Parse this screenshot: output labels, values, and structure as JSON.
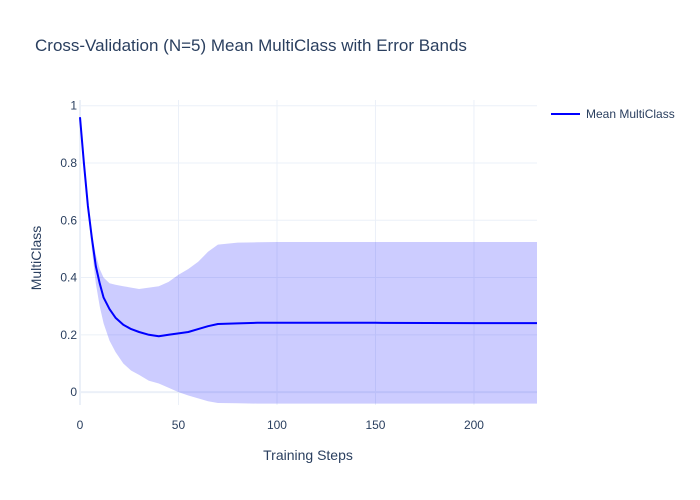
{
  "chart_data": {
    "type": "line",
    "title": "Cross-Validation (N=5) Mean MultiClass with Error Bands",
    "xlabel": "Training Steps",
    "ylabel": "MultiClass",
    "xlim": [
      0,
      232
    ],
    "ylim": [
      -0.045,
      1.02
    ],
    "x_ticks": [
      0,
      50,
      100,
      150,
      200
    ],
    "y_ticks": [
      0,
      0.2,
      0.4,
      0.6,
      0.8,
      1
    ],
    "x_tick_labels": [
      "0",
      "50",
      "100",
      "150",
      "200"
    ],
    "y_tick_labels": [
      "0",
      "0.2",
      "0.4",
      "0.6",
      "0.8",
      "1"
    ],
    "grid": true,
    "legend_position": "top-right",
    "series": [
      {
        "name": "Mean MultiClass",
        "color": "#0000ff",
        "x": [
          0,
          2,
          4,
          6,
          8,
          10,
          12,
          15,
          18,
          22,
          26,
          30,
          35,
          40,
          45,
          50,
          55,
          60,
          65,
          70,
          80,
          90,
          100,
          150,
          200,
          232
        ],
        "y": [
          0.96,
          0.8,
          0.65,
          0.54,
          0.44,
          0.38,
          0.33,
          0.29,
          0.26,
          0.235,
          0.22,
          0.21,
          0.2,
          0.195,
          0.2,
          0.205,
          0.21,
          0.22,
          0.23,
          0.238,
          0.24,
          0.242,
          0.242,
          0.242,
          0.241,
          0.241
        ]
      }
    ],
    "error_band": {
      "color": "rgba(0,0,255,0.2)",
      "x": [
        0,
        2,
        4,
        6,
        8,
        10,
        12,
        15,
        18,
        22,
        26,
        30,
        35,
        40,
        45,
        50,
        55,
        60,
        65,
        70,
        80,
        90,
        100,
        150,
        200,
        232
      ],
      "upper": [
        0.96,
        0.8,
        0.65,
        0.55,
        0.48,
        0.43,
        0.4,
        0.38,
        0.375,
        0.37,
        0.365,
        0.36,
        0.365,
        0.37,
        0.385,
        0.41,
        0.43,
        0.455,
        0.49,
        0.515,
        0.522,
        0.523,
        0.524,
        0.524,
        0.524,
        0.524
      ],
      "lower": [
        0.96,
        0.8,
        0.63,
        0.5,
        0.38,
        0.3,
        0.24,
        0.18,
        0.14,
        0.1,
        0.075,
        0.06,
        0.04,
        0.03,
        0.015,
        0.0,
        -0.012,
        -0.022,
        -0.032,
        -0.038,
        -0.039,
        -0.04,
        -0.04,
        -0.04,
        -0.04,
        -0.04
      ]
    }
  }
}
